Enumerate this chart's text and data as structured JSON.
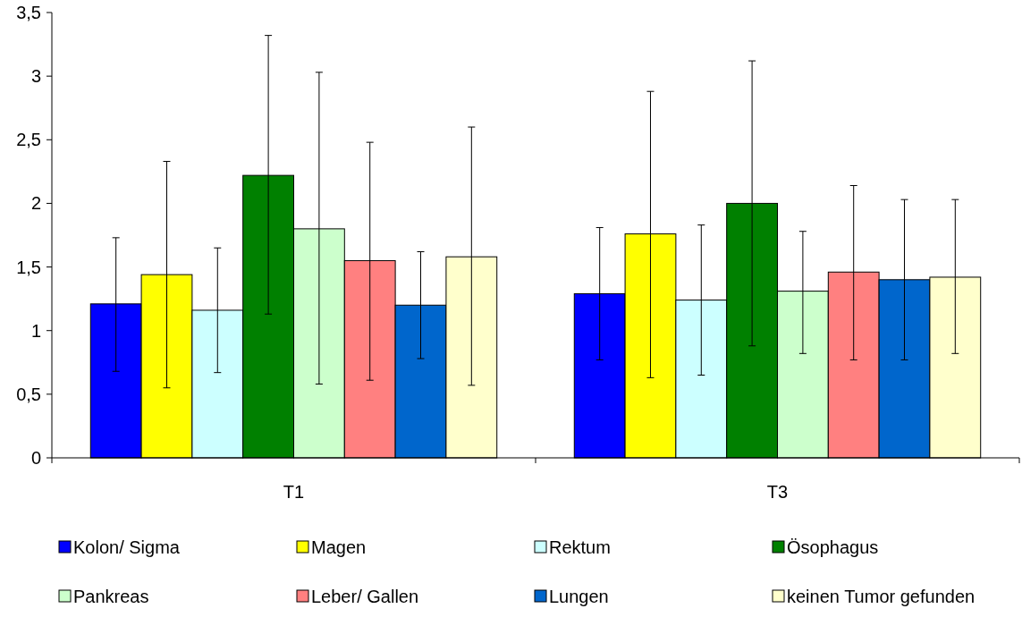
{
  "chart_data": {
    "type": "bar",
    "categories": [
      "T1",
      "T3"
    ],
    "series": [
      {
        "name": "Kolon/ Sigma",
        "color": "#0000ff",
        "values": [
          1.21,
          1.29
        ],
        "errors": [
          [
            0.68,
            1.73
          ],
          [
            0.77,
            1.81
          ]
        ]
      },
      {
        "name": "Magen",
        "color": "#ffff00",
        "values": [
          1.44,
          1.76
        ],
        "errors": [
          [
            0.55,
            2.33
          ],
          [
            0.63,
            2.88
          ]
        ]
      },
      {
        "name": "Rektum",
        "color": "#ccffff",
        "values": [
          1.16,
          1.24
        ],
        "errors": [
          [
            0.67,
            1.65
          ],
          [
            0.65,
            1.83
          ]
        ]
      },
      {
        "name": "Ösophagus",
        "color": "#008000",
        "values": [
          2.22,
          2.0
        ],
        "errors": [
          [
            1.13,
            3.32
          ],
          [
            0.88,
            3.12
          ]
        ]
      },
      {
        "name": "Pankreas",
        "color": "#ccffcc",
        "values": [
          1.8,
          1.31
        ],
        "errors": [
          [
            0.58,
            3.03
          ],
          [
            0.82,
            1.78
          ]
        ]
      },
      {
        "name": "Leber/ Gallen",
        "color": "#ff8080",
        "values": [
          1.55,
          1.46
        ],
        "errors": [
          [
            0.61,
            2.48
          ],
          [
            0.77,
            2.14
          ]
        ]
      },
      {
        "name": "Lungen",
        "color": "#0066cc",
        "values": [
          1.2,
          1.4
        ],
        "errors": [
          [
            0.78,
            1.62
          ],
          [
            0.77,
            2.03
          ]
        ]
      },
      {
        "name": "keinen Tumor gefunden",
        "color": "#ffffcc",
        "values": [
          1.58,
          1.42
        ],
        "errors": [
          [
            0.57,
            2.6
          ],
          [
            0.82,
            2.03
          ]
        ]
      }
    ],
    "ylim": [
      0,
      3.5
    ],
    "yticks": [
      0,
      {
        "value": 0.5,
        "label": "0,5"
      },
      1,
      {
        "value": 1.5,
        "label": "1,5"
      },
      2,
      {
        "value": 2.5,
        "label": "2,5"
      },
      3,
      {
        "value": 3.5,
        "label": "3,5"
      }
    ],
    "grid": false,
    "legend": "bottom"
  }
}
